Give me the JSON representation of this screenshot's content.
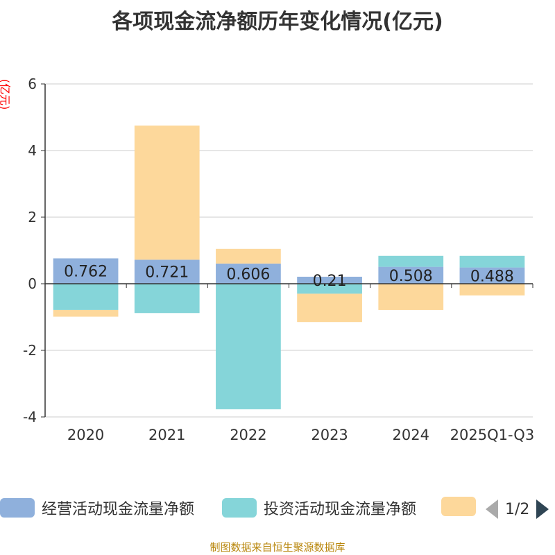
{
  "chart_data": {
    "type": "bar",
    "stacked": true,
    "title": "各项现金流净额历年变化情况(亿元)",
    "ylabel": "(亿元)",
    "ylim": [
      -4,
      6
    ],
    "yticks": [
      -4,
      -2,
      0,
      2,
      4,
      6
    ],
    "categories": [
      "2020",
      "2021",
      "2022",
      "2023",
      "2024",
      "2025Q1-Q3"
    ],
    "series": [
      {
        "name": "经营活动现金流量净额",
        "color": "#8fb0dc",
        "values": [
          0.762,
          0.721,
          0.606,
          0.21,
          0.508,
          0.488
        ],
        "labels": [
          "0.762",
          "0.721",
          "0.606",
          "0.21",
          "0.508",
          "0.488"
        ]
      },
      {
        "name": "投资活动现金流量净额",
        "color": "#85d5d9",
        "values": [
          -0.79,
          -0.88,
          -3.77,
          -0.3,
          0.33,
          0.35
        ]
      },
      {
        "name": "",
        "color": "#fdd89b",
        "values": [
          -0.2,
          4.03,
          0.44,
          -0.85,
          -0.79,
          -0.35
        ]
      }
    ],
    "grid": true,
    "legend": "bottom"
  },
  "legend_pager": "1/2",
  "source": "制图数据来自恒生聚源数据库"
}
